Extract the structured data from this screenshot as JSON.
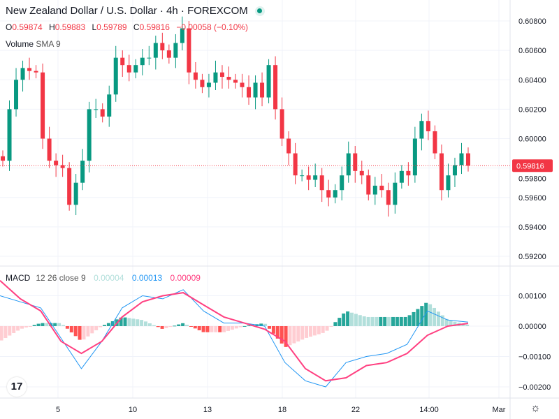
{
  "header": {
    "title": "New Zealand Dollar / U.S. Dollar · 4h · FOREXCOM",
    "status": "market-open"
  },
  "ohlc": {
    "o_label": "O",
    "o": "0.59874",
    "h_label": "H",
    "h": "0.59883",
    "l_label": "L",
    "l": "0.59789",
    "c_label": "C",
    "c": "0.59816",
    "change": "−0.00058 (−0.10%)"
  },
  "volume": {
    "label": "Volume",
    "ma": "SMA 9"
  },
  "macd_legend": {
    "label": "MACD",
    "params": "12 26 close 9",
    "hist": "0.00004",
    "macd": "0.00013",
    "signal": "0.00009"
  },
  "colors": {
    "up": "#089981",
    "down": "#f23645",
    "macd": "#2196f3",
    "signal": "#ff4081",
    "hist_up_strong": "#26a69a",
    "hist_up_weak": "#b2dfdb",
    "hist_dn_strong": "#ff5252",
    "hist_dn_weak": "#ffcdd2"
  },
  "chart_data": [
    {
      "type": "candlestick",
      "title": "NZD/USD 4h",
      "closes": [
        0.5985,
        0.602,
        0.604,
        0.6048,
        0.6046,
        0.6045,
        0.6,
        0.5985,
        0.5982,
        0.598,
        0.5955,
        0.597,
        0.5985,
        0.602,
        0.602,
        0.6015,
        0.603,
        0.6055,
        0.605,
        0.6045,
        0.605,
        0.6055,
        0.6055,
        0.6065,
        0.606,
        0.6055,
        0.6065,
        0.6075,
        0.6045,
        0.604,
        0.6035,
        0.6038,
        0.6045,
        0.6042,
        0.604,
        0.6038,
        0.6035,
        0.6028,
        0.6038,
        0.6028,
        0.605,
        0.602,
        0.6,
        0.599,
        0.5975,
        0.5975,
        0.5972,
        0.5975,
        0.5965,
        0.596,
        0.5965,
        0.5975,
        0.599,
        0.5978,
        0.5975,
        0.5962,
        0.5968,
        0.5965,
        0.5955,
        0.597,
        0.5978,
        0.5975,
        0.6,
        0.6012,
        0.6005,
        0.599,
        0.5965,
        0.5975,
        0.5982,
        0.599,
        0.59816
      ],
      "last_price": "0.59816",
      "ylim": [
        0.5915,
        0.609
      ],
      "y_ticks": [
        "0.60800",
        "0.60600",
        "0.60400",
        "0.60200",
        "0.60000",
        "0.59800",
        "0.59600",
        "0.59400",
        "0.59200"
      ],
      "x_ticks": [
        "5",
        "10",
        "13",
        "18",
        "22",
        "14:00",
        "Mar"
      ]
    },
    {
      "type": "line",
      "title": "MACD 12 26 close 9",
      "macd": [
        0.001,
        0.0008,
        0.0006,
        -0.0004,
        -0.0014,
        -0.0005,
        0.0006,
        0.001,
        0.0009,
        0.0012,
        0.0005,
        0.0001,
        0.0001,
        0.0,
        -0.0012,
        -0.0018,
        -0.002,
        -0.0012,
        -0.001,
        -0.0009,
        -0.0006,
        0.0005,
        0.0002,
        0.00013
      ],
      "signal": [
        0.0015,
        0.0009,
        0.0005,
        -0.0005,
        -0.0009,
        -0.0005,
        0.0003,
        0.0008,
        0.001,
        0.0011,
        0.0007,
        0.0003,
        0.0001,
        -0.0001,
        -0.0005,
        -0.0014,
        -0.0018,
        -0.0017,
        -0.0013,
        -0.0012,
        -0.0009,
        -0.0003,
        0.0,
        9e-05
      ],
      "y_ticks": [
        "0.00100",
        "0.00000",
        "−0.00100",
        "−0.00200"
      ],
      "ylim": [
        -0.0022,
        0.0015
      ]
    }
  ]
}
